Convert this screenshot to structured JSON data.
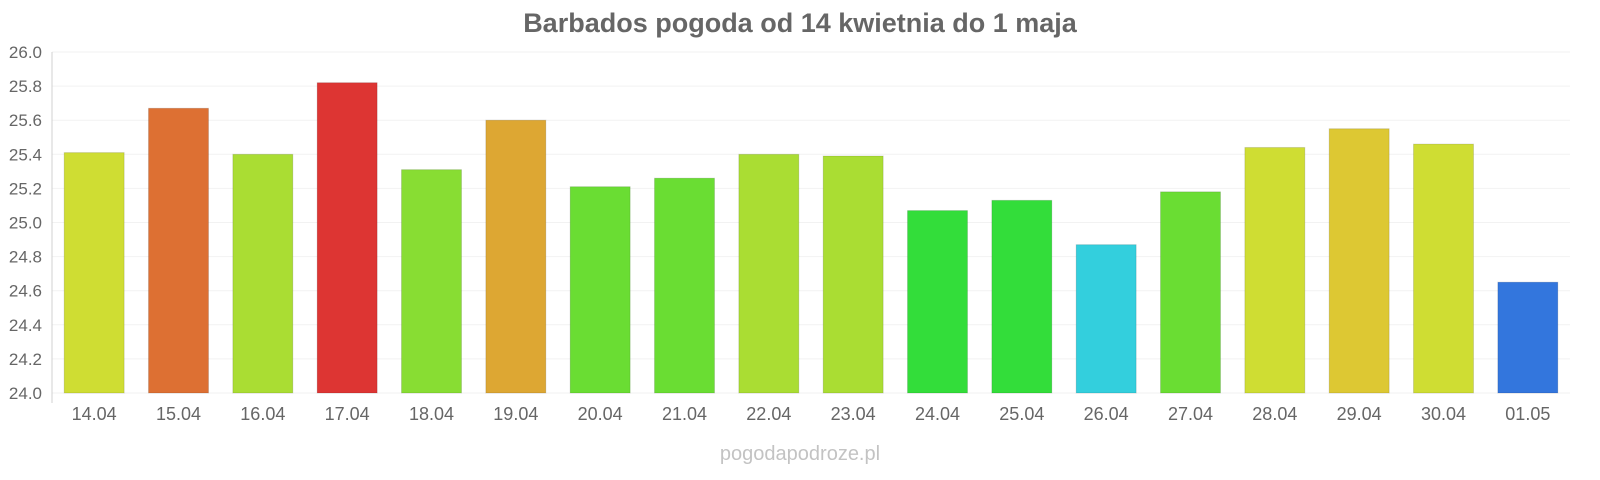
{
  "chart_data": {
    "type": "bar",
    "title": "Barbados pogoda od 14 kwietnia do 1 maja",
    "xlabel": "",
    "ylabel": "",
    "ylim": [
      24.0,
      26.0
    ],
    "yticks": [
      "24.0",
      "24.2",
      "24.4",
      "24.6",
      "24.8",
      "25.0",
      "25.2",
      "25.4",
      "25.6",
      "25.8",
      "26.0"
    ],
    "categories": [
      "14.04",
      "15.04",
      "16.04",
      "17.04",
      "18.04",
      "19.04",
      "20.04",
      "21.04",
      "22.04",
      "23.04",
      "24.04",
      "25.04",
      "26.04",
      "27.04",
      "28.04",
      "29.04",
      "30.04",
      "01.05"
    ],
    "values": [
      25.41,
      25.67,
      25.4,
      25.82,
      25.31,
      25.6,
      25.21,
      25.26,
      25.4,
      25.39,
      25.07,
      25.13,
      24.87,
      25.18,
      25.44,
      25.55,
      25.46,
      24.65
    ],
    "colors": [
      "#cfdd33",
      "#dd7033",
      "#aadd33",
      "#dd3533",
      "#88dd33",
      "#dda733",
      "#6add33",
      "#6add33",
      "#aadd33",
      "#aadd33",
      "#33dd3a",
      "#33dd3a",
      "#33cfdd",
      "#6add33",
      "#cfdd33",
      "#ddc833",
      "#cfdd33",
      "#3376dd"
    ],
    "grid": true,
    "legend": "none"
  },
  "footer": {
    "credit": "pogodapodroze.pl"
  }
}
